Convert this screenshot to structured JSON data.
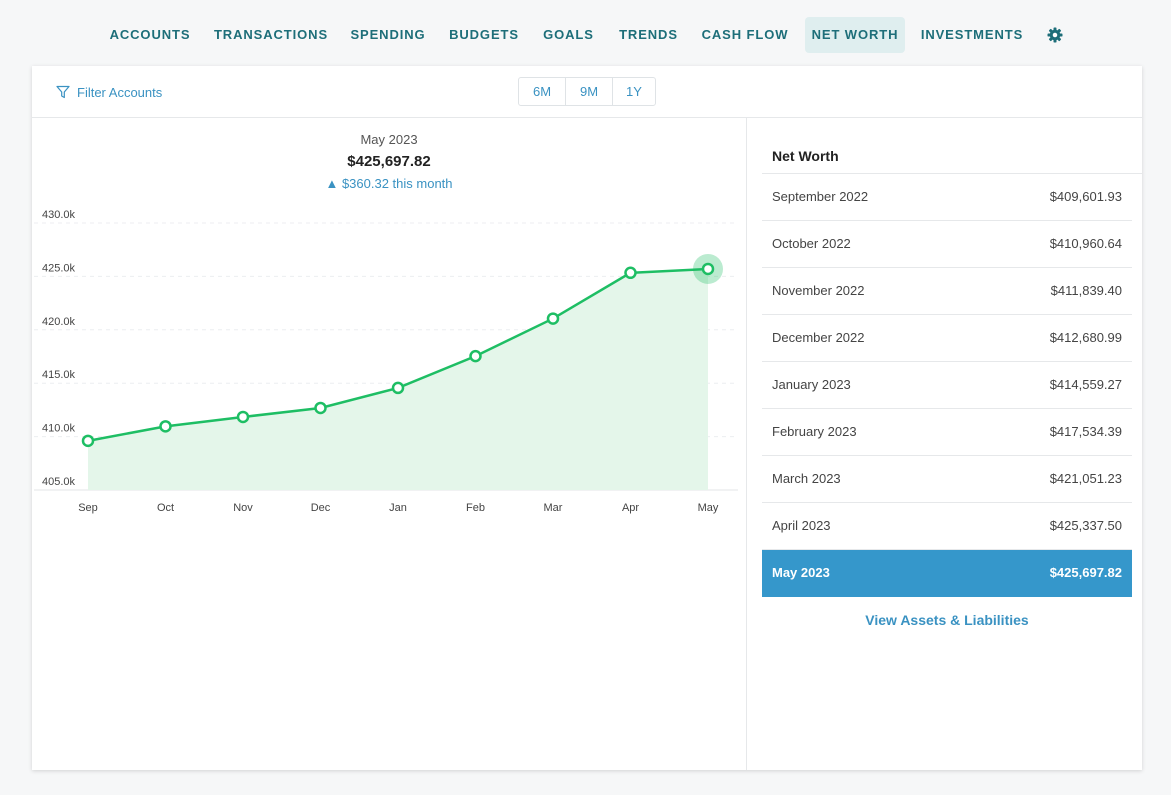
{
  "nav": {
    "items": [
      {
        "label": "ACCOUNTS",
        "active": false
      },
      {
        "label": "TRANSACTIONS",
        "active": false
      },
      {
        "label": "SPENDING",
        "active": false
      },
      {
        "label": "BUDGETS",
        "active": false
      },
      {
        "label": "GOALS",
        "active": false
      },
      {
        "label": "TRENDS",
        "active": false
      },
      {
        "label": "CASH FLOW",
        "active": false
      },
      {
        "label": "NET WORTH",
        "active": true
      },
      {
        "label": "INVESTMENTS",
        "active": false
      }
    ],
    "settings_icon": "gear-icon"
  },
  "toolbar": {
    "filter_label": "Filter Accounts",
    "filter_icon": "filter-icon",
    "ranges": [
      "6M",
      "9M",
      "1Y"
    ]
  },
  "summary": {
    "month": "May 2023",
    "amount": "$425,697.82",
    "change": "▲ $360.32 this month"
  },
  "chart_data": {
    "type": "area",
    "categories": [
      "Sep",
      "Oct",
      "Nov",
      "Dec",
      "Jan",
      "Feb",
      "Mar",
      "Apr",
      "May"
    ],
    "values": [
      409601.93,
      410960.64,
      411839.4,
      412680.99,
      414559.27,
      417534.39,
      421051.23,
      425337.5,
      425697.82
    ],
    "ylim": [
      405000,
      430000
    ],
    "y_ticks": [
      405000,
      410000,
      415000,
      420000,
      425000,
      430000
    ],
    "y_tick_labels": [
      "405.0k",
      "410.0k",
      "415.0k",
      "420.0k",
      "425.0k",
      "430.0k"
    ],
    "grid": true,
    "highlight_index": 8,
    "line_color": "#1ebe64",
    "fill_color": "#e4f6ea"
  },
  "panel": {
    "title": "Net Worth",
    "rows": [
      {
        "label": "September 2022",
        "value": "$409,601.93",
        "selected": false
      },
      {
        "label": "October 2022",
        "value": "$410,960.64",
        "selected": false
      },
      {
        "label": "November 2022",
        "value": "$411,839.40",
        "selected": false
      },
      {
        "label": "December 2022",
        "value": "$412,680.99",
        "selected": false
      },
      {
        "label": "January 2023",
        "value": "$414,559.27",
        "selected": false
      },
      {
        "label": "February 2023",
        "value": "$417,534.39",
        "selected": false
      },
      {
        "label": "March 2023",
        "value": "$421,051.23",
        "selected": false
      },
      {
        "label": "April 2023",
        "value": "$425,337.50",
        "selected": false
      },
      {
        "label": "May 2023",
        "value": "$425,697.82",
        "selected": true
      }
    ],
    "link": "View Assets & Liabilities"
  },
  "colors": {
    "accent": "#3a92c2",
    "nav_text": "#1d6e79",
    "selected_row": "#3597cb"
  }
}
